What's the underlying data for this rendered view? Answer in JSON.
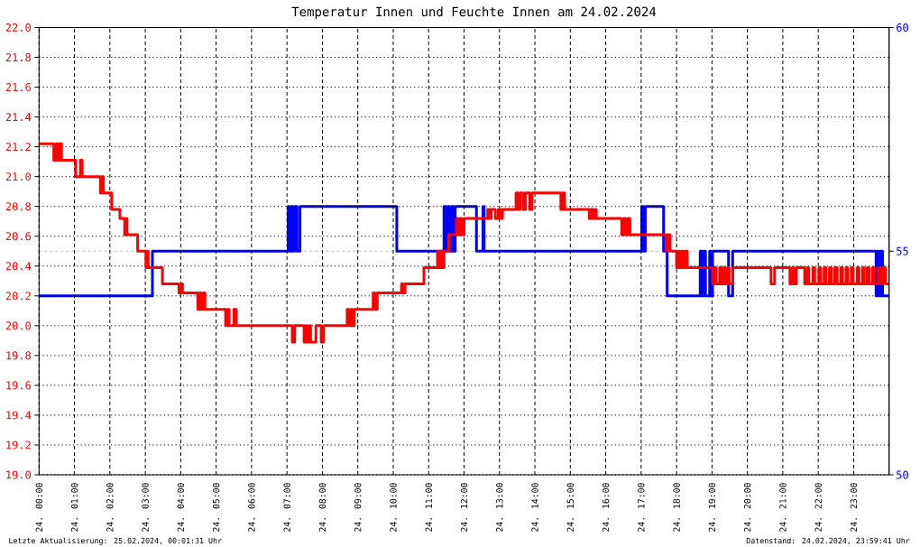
{
  "chart_data": {
    "type": "step",
    "title": "Temperatur Innen und Feuchte Innen am 24.02.2024",
    "annotations": [
      "Letzte Aktualisierung: 25.02.2024, 00:01:31 Uhr",
      "Datenstand: 24.02.2024, 23:59:41 Uhr"
    ],
    "xlim": [
      "2024-02-24T00:00",
      "2024-02-25T00:00"
    ],
    "xticks": [
      {
        "value": "2024-02-24T00:00",
        "label": "24. 00:00"
      },
      {
        "value": "2024-02-24T01:00",
        "label": "24. 01:00"
      },
      {
        "value": "2024-02-24T02:00",
        "label": "24. 02:00"
      },
      {
        "value": "2024-02-24T03:00",
        "label": "24. 03:00"
      },
      {
        "value": "2024-02-24T04:00",
        "label": "24. 04:00"
      },
      {
        "value": "2024-02-24T05:00",
        "label": "24. 05:00"
      },
      {
        "value": "2024-02-24T06:00",
        "label": "24. 06:00"
      },
      {
        "value": "2024-02-24T07:00",
        "label": "24. 07:00"
      },
      {
        "value": "2024-02-24T08:00",
        "label": "24. 08:00"
      },
      {
        "value": "2024-02-24T09:00",
        "label": "24. 09:00"
      },
      {
        "value": "2024-02-24T10:00",
        "label": "24. 10:00"
      },
      {
        "value": "2024-02-24T11:00",
        "label": "24. 11:00"
      },
      {
        "value": "2024-02-24T12:00",
        "label": "24. 12:00"
      },
      {
        "value": "2024-02-24T13:00",
        "label": "24. 13:00"
      },
      {
        "value": "2024-02-24T14:00",
        "label": "24. 14:00"
      },
      {
        "value": "2024-02-24T15:00",
        "label": "24. 15:00"
      },
      {
        "value": "2024-02-24T16:00",
        "label": "24. 16:00"
      },
      {
        "value": "2024-02-24T17:00",
        "label": "24. 17:00"
      },
      {
        "value": "2024-02-24T18:00",
        "label": "24. 18:00"
      },
      {
        "value": "2024-02-24T19:00",
        "label": "24. 19:00"
      },
      {
        "value": "2024-02-24T20:00",
        "label": "24. 20:00"
      },
      {
        "value": "2024-02-24T21:00",
        "label": "24. 21:00"
      },
      {
        "value": "2024-02-24T22:00",
        "label": "24. 22:00"
      },
      {
        "value": "2024-02-24T23:00",
        "label": "24. 23:00"
      }
    ],
    "ylim": [
      19,
      22
    ],
    "yticks": [
      {
        "value": 19,
        "label": "19.0"
      },
      19.2,
      19.4,
      19.6,
      19.8,
      {
        "value": 20,
        "label": "20.0"
      },
      20.2,
      20.4,
      20.6,
      20.8,
      {
        "value": 21,
        "label": "21.0"
      },
      21.2,
      21.4,
      21.6,
      21.8,
      {
        "value": 22,
        "label": "22.0"
      }
    ],
    "y2lim": [
      50,
      60
    ],
    "y2ticks": [
      50,
      55,
      60
    ],
    "grid": true,
    "ref_lines": [
      {
        "axis": "y2",
        "value": 55,
        "color": "#c0c0c0",
        "line_style": "dashed"
      }
    ],
    "series": [
      {
        "color": "#ff0000",
        "x": [
          "2024-02-24T00:00",
          "2024-02-24T00:25",
          "2024-02-24T00:29",
          "2024-02-24T00:32",
          "2024-02-24T00:35",
          "2024-02-24T00:38",
          "2024-02-24T01:02",
          "2024-02-24T01:10",
          "2024-02-24T01:13",
          "2024-02-24T01:44",
          "2024-02-24T01:46",
          "2024-02-24T01:49",
          "2024-02-24T02:03",
          "2024-02-24T02:17",
          "2024-02-24T02:25",
          "2024-02-24T02:28",
          "2024-02-24T02:29",
          "2024-02-24T02:47",
          "2024-02-24T03:01",
          "2024-02-24T03:02",
          "2024-02-24T03:05",
          "2024-02-24T03:29",
          "2024-02-24T03:57",
          "2024-02-24T04:01",
          "2024-02-24T04:03",
          "2024-02-24T04:29",
          "2024-02-24T04:32",
          "2024-02-24T04:35",
          "2024-02-24T04:38",
          "2024-02-24T04:41",
          "2024-02-24T05:16",
          "2024-02-24T05:19",
          "2024-02-24T05:22",
          "2024-02-24T05:30",
          "2024-02-24T05:34",
          "2024-02-24T07:09",
          "2024-02-24T07:13",
          "2024-02-24T07:29",
          "2024-02-24T07:32",
          "2024-02-24T07:34",
          "2024-02-24T07:38",
          "2024-02-24T07:40",
          "2024-02-24T07:49",
          "2024-02-24T07:58",
          "2024-02-24T08:02",
          "2024-02-24T08:42",
          "2024-02-24T08:45",
          "2024-02-24T08:48",
          "2024-02-24T08:51",
          "2024-02-24T08:54",
          "2024-02-24T09:26",
          "2024-02-24T09:29",
          "2024-02-24T09:33",
          "2024-02-24T10:14",
          "2024-02-24T10:17",
          "2024-02-24T10:20",
          "2024-02-24T10:52",
          "2024-02-24T11:15",
          "2024-02-24T11:17",
          "2024-02-24T11:20",
          "2024-02-24T11:23",
          "2024-02-24T11:26",
          "2024-02-24T11:34",
          "2024-02-24T11:47",
          "2024-02-24T11:50",
          "2024-02-24T11:53",
          "2024-02-24T11:56",
          "2024-02-24T12:00",
          "2024-02-24T12:40",
          "2024-02-24T12:43",
          "2024-02-24T12:46",
          "2024-02-24T12:53",
          "2024-02-24T12:58",
          "2024-02-24T13:02",
          "2024-02-24T13:05",
          "2024-02-24T13:28",
          "2024-02-24T13:32",
          "2024-02-24T13:35",
          "2024-02-24T13:40",
          "2024-02-24T13:44",
          "2024-02-24T13:51",
          "2024-02-24T13:55",
          "2024-02-24T14:44",
          "2024-02-24T14:47",
          "2024-02-24T14:50",
          "2024-02-24T15:32",
          "2024-02-24T15:35",
          "2024-02-24T15:38",
          "2024-02-24T15:41",
          "2024-02-24T15:44",
          "2024-02-24T16:27",
          "2024-02-24T16:31",
          "2024-02-24T16:34",
          "2024-02-24T16:38",
          "2024-02-24T16:41",
          "2024-02-24T17:42",
          "2024-02-24T17:45",
          "2024-02-24T17:49",
          "2024-02-24T18:00",
          "2024-02-24T18:03",
          "2024-02-24T18:05",
          "2024-02-24T18:08",
          "2024-02-24T18:11",
          "2024-02-24T18:14",
          "2024-02-24T18:18",
          "2024-02-24T19:01",
          "2024-02-24T19:04",
          "2024-02-24T19:07",
          "2024-02-24T19:13",
          "2024-02-24T19:16",
          "2024-02-24T19:19",
          "2024-02-24T19:22",
          "2024-02-24T19:26",
          "2024-02-24T19:29",
          "2024-02-24T19:35",
          "2024-02-24T20:40",
          "2024-02-24T20:46",
          "2024-02-24T21:12",
          "2024-02-24T21:16",
          "2024-02-24T21:19",
          "2024-02-24T21:23",
          "2024-02-24T21:37",
          "2024-02-24T21:41",
          "2024-02-24T21:44",
          "2024-02-24T21:51",
          "2024-02-24T21:54",
          "2024-02-24T22:01",
          "2024-02-24T22:04",
          "2024-02-24T22:10",
          "2024-02-24T22:13",
          "2024-02-24T22:19",
          "2024-02-24T22:22",
          "2024-02-24T22:28",
          "2024-02-24T22:32",
          "2024-02-24T22:38",
          "2024-02-24T22:41",
          "2024-02-24T22:47",
          "2024-02-24T22:50",
          "2024-02-24T22:56",
          "2024-02-24T22:59",
          "2024-02-24T23:06",
          "2024-02-24T23:09",
          "2024-02-24T23:15",
          "2024-02-24T23:18",
          "2024-02-24T23:23",
          "2024-02-24T23:26",
          "2024-02-24T23:32",
          "2024-02-24T23:35",
          "2024-02-24T23:42",
          "2024-02-24T23:45",
          "2024-02-24T23:50",
          "2024-02-24T23:54",
          "2024-02-24T23:59"
        ],
        "values": [
          21.22,
          21.11,
          21.22,
          21.11,
          21.22,
          21.11,
          21.0,
          21.11,
          21.0,
          20.89,
          21.0,
          20.89,
          20.78,
          20.72,
          20.61,
          20.72,
          20.61,
          20.5,
          20.39,
          20.5,
          20.39,
          20.28,
          20.22,
          20.28,
          20.22,
          20.11,
          20.22,
          20.11,
          20.22,
          20.11,
          20.0,
          20.11,
          20.0,
          20.11,
          20.0,
          19.89,
          20.0,
          19.89,
          20.0,
          19.89,
          20.0,
          19.89,
          20.0,
          19.89,
          20.0,
          20.11,
          20.0,
          20.11,
          20.0,
          20.11,
          20.22,
          20.11,
          20.22,
          20.28,
          20.22,
          20.28,
          20.39,
          20.5,
          20.39,
          20.5,
          20.39,
          20.5,
          20.61,
          20.72,
          20.61,
          20.72,
          20.61,
          20.72,
          20.78,
          20.72,
          20.78,
          20.72,
          20.78,
          20.72,
          20.78,
          20.89,
          20.78,
          20.89,
          20.78,
          20.89,
          20.78,
          20.89,
          20.78,
          20.89,
          20.78,
          20.72,
          20.78,
          20.72,
          20.78,
          20.72,
          20.61,
          20.72,
          20.61,
          20.72,
          20.61,
          20.5,
          20.61,
          20.5,
          20.39,
          20.5,
          20.39,
          20.5,
          20.39,
          20.5,
          20.39,
          20.28,
          20.39,
          20.28,
          20.39,
          20.28,
          20.39,
          20.28,
          20.39,
          20.28,
          20.39,
          20.28,
          20.39,
          20.28,
          20.39,
          20.28,
          20.39,
          20.28,
          20.39,
          20.28,
          20.39,
          20.28,
          20.39,
          20.28,
          20.39,
          20.28,
          20.39,
          20.28,
          20.39,
          20.28,
          20.39,
          20.28,
          20.39,
          20.28,
          20.39,
          20.28,
          20.39,
          20.28,
          20.39,
          20.28,
          20.39,
          20.28,
          20.39,
          20.28,
          20.39,
          20.28,
          20.39,
          20.28,
          20.28
        ]
      },
      {
        "color": "#0000ff",
        "axis": "y2",
        "x": [
          "2024-02-24T00:00",
          "2024-02-24T03:12",
          "2024-02-24T07:02",
          "2024-02-24T07:04",
          "2024-02-24T07:07",
          "2024-02-24T07:10",
          "2024-02-24T07:13",
          "2024-02-24T07:17",
          "2024-02-24T07:22",
          "2024-02-24T10:06",
          "2024-02-24T11:26",
          "2024-02-24T11:29",
          "2024-02-24T11:32",
          "2024-02-24T11:36",
          "2024-02-24T11:39",
          "2024-02-24T11:42",
          "2024-02-24T11:45",
          "2024-02-24T12:21",
          "2024-02-24T12:32",
          "2024-02-24T12:34",
          "2024-02-24T17:01",
          "2024-02-24T17:04",
          "2024-02-24T17:07",
          "2024-02-24T17:38",
          "2024-02-24T17:44",
          "2024-02-24T18:40",
          "2024-02-24T18:43",
          "2024-02-24T18:46",
          "2024-02-24T18:49",
          "2024-02-24T18:56",
          "2024-02-24T18:59",
          "2024-02-24T19:01",
          "2024-02-24T19:28",
          "2024-02-24T19:35",
          "2024-02-24T23:38",
          "2024-02-24T23:40",
          "2024-02-24T23:43",
          "2024-02-24T23:46",
          "2024-02-24T23:49",
          "2024-02-24T23:59"
        ],
        "values": [
          54,
          55,
          56,
          55,
          56,
          55,
          56,
          55,
          56,
          55,
          56,
          55,
          56,
          55,
          56,
          55,
          56,
          55,
          56,
          55,
          56,
          55,
          56,
          55,
          54,
          55,
          54,
          55,
          54,
          55,
          54,
          55,
          54,
          55,
          54,
          55,
          54,
          55,
          54,
          54
        ]
      }
    ]
  }
}
